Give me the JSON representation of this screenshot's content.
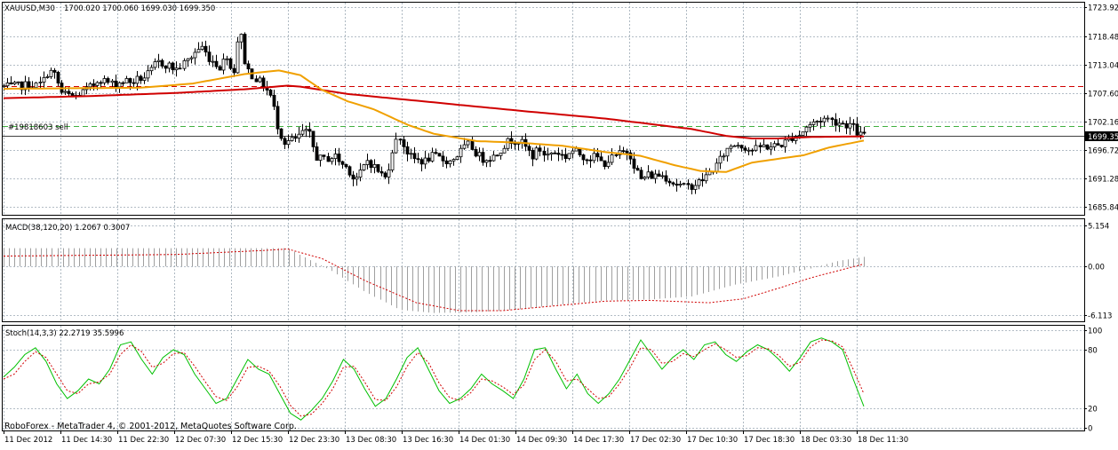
{
  "header": {
    "symbol": "XAUUSD,M30",
    "ohlc": "1700.020 1700.060 1699.030 1699.350"
  },
  "order_line": {
    "label": "#19818603 sell",
    "price": 1701.3
  },
  "resistance_line": {
    "price": 1708.9
  },
  "current_price": {
    "label": "1699.35",
    "price": 1699.35
  },
  "macd": {
    "label": "MACD(38,120,20) 1.2067 0.3007"
  },
  "stoch": {
    "label": "Stoch(14,3,3) 22.2719 35.5996"
  },
  "watermark": "RoboForex - MetaTrader 4, © 2001-2012, MetaQuotes Software Corp.",
  "colors": {
    "candles": "#000000",
    "ma_slow": "#d00000",
    "ma_fast": "#f0a000",
    "macd_hist": "#a0a0a0",
    "macd_signal": "#d00000",
    "stoch_main": "#00c000",
    "stoch_signal": "#d00000",
    "grid": "#9aa8b4",
    "current_line": "#000000",
    "sell_line": "#40b040",
    "resistance": "#d00000"
  },
  "chart_data": [
    {
      "type": "candlestick",
      "title": "XAUUSD,M30",
      "ylim": [
        1685.0,
        1724.0
      ],
      "y_ticks": [
        "1723.92",
        "1718.48",
        "1713.04",
        "1707.60",
        "1702.16",
        "1696.72",
        "1691.28",
        "1685.84"
      ],
      "x_ticks": [
        "11 Dec 2012",
        "11 Dec 14:30",
        "11 Dec 22:30",
        "12 Dec 07:30",
        "12 Dec 15:30",
        "12 Dec 23:30",
        "13 Dec 08:30",
        "13 Dec 16:30",
        "14 Dec 01:30",
        "14 Dec 09:30",
        "14 Dec 17:30",
        "17 Dec 02:30",
        "17 Dec 10:30",
        "17 Dec 18:30",
        "18 Dec 03:30",
        "18 Dec 11:30"
      ],
      "close_path": [
        1708.8,
        1708.7,
        1708.9,
        1709.0,
        1709.2,
        1709.0,
        1709.5,
        1712.0,
        1711.0,
        1707.6,
        1707.2,
        1706.8,
        1707.5,
        1708.2,
        1709.0,
        1710.5,
        1709.8,
        1709.3,
        1709.6,
        1710.0,
        1709.6,
        1710.2,
        1710.6,
        1711.5,
        1713.5,
        1713.2,
        1712.8,
        1712.0,
        1713.0,
        1714.0,
        1715.5,
        1716.5,
        1714.5,
        1713.5,
        1712.5,
        1715.0,
        1710.5,
        1720.5,
        1712.5,
        1711.0,
        1709.8,
        1708.6,
        1706.6,
        1701.0,
        1698.2,
        1698.5,
        1698.8,
        1700.3,
        1699.6,
        1695.5,
        1694.8,
        1695.2,
        1695.5,
        1694.0,
        1693.2,
        1691.0,
        1692.3,
        1694.8,
        1693.7,
        1692.4,
        1691.2,
        1696.8,
        1699.5,
        1696.8,
        1695.0,
        1694.8,
        1694.5,
        1695.5,
        1695.3,
        1694.8,
        1694.5,
        1695.5,
        1696.8,
        1697.8,
        1696.2,
        1695.0,
        1695.3,
        1695.5,
        1697.0,
        1698.2,
        1698.8,
        1698.4,
        1697.1,
        1695.5,
        1697.0,
        1695.5,
        1696.3,
        1696.2,
        1695.3,
        1696.6,
        1696.2,
        1695.5,
        1695.2,
        1695.5,
        1694.0,
        1694.8,
        1695.5,
        1696.2,
        1696.6,
        1693.5,
        1691.0,
        1692.0,
        1691.7,
        1692.0,
        1691.5,
        1690.5,
        1690.0,
        1689.5,
        1690.0,
        1690.5,
        1691.5,
        1692.8,
        1694.0,
        1696.0,
        1697.5,
        1698.0,
        1697.5,
        1696.8,
        1696.8,
        1697.5,
        1697.3,
        1697.5,
        1697.8,
        1698.5,
        1699.5,
        1699.7,
        1701.2,
        1701.8,
        1702.4,
        1702.8,
        1702.3,
        1702.0,
        1701.6,
        1701.5,
        1699.8,
        1699.35
      ],
      "ma_fast": [
        {
          "t": 0,
          "v": 1708.4
        },
        {
          "t": 0.08,
          "v": 1708.5
        },
        {
          "t": 0.16,
          "v": 1708.6
        },
        {
          "t": 0.22,
          "v": 1709.4
        },
        {
          "t": 0.28,
          "v": 1711.2
        },
        {
          "t": 0.32,
          "v": 1711.9
        },
        {
          "t": 0.345,
          "v": 1711.0
        },
        {
          "t": 0.37,
          "v": 1708.2
        },
        {
          "t": 0.4,
          "v": 1706.0
        },
        {
          "t": 0.43,
          "v": 1704.5
        },
        {
          "t": 0.47,
          "v": 1701.5
        },
        {
          "t": 0.5,
          "v": 1699.8
        },
        {
          "t": 0.55,
          "v": 1698.4
        },
        {
          "t": 0.6,
          "v": 1698.1
        },
        {
          "t": 0.65,
          "v": 1697.5
        },
        {
          "t": 0.7,
          "v": 1696.3
        },
        {
          "t": 0.74,
          "v": 1695.6
        },
        {
          "t": 0.78,
          "v": 1693.8
        },
        {
          "t": 0.81,
          "v": 1692.7
        },
        {
          "t": 0.84,
          "v": 1692.5
        },
        {
          "t": 0.87,
          "v": 1694.3
        },
        {
          "t": 0.9,
          "v": 1695.0
        },
        {
          "t": 0.93,
          "v": 1695.7
        },
        {
          "t": 0.96,
          "v": 1697.2
        },
        {
          "t": 1.0,
          "v": 1698.5
        }
      ],
      "ma_slow": [
        {
          "t": 0,
          "v": 1706.6
        },
        {
          "t": 0.1,
          "v": 1707.0
        },
        {
          "t": 0.2,
          "v": 1707.6
        },
        {
          "t": 0.28,
          "v": 1708.3
        },
        {
          "t": 0.33,
          "v": 1709.0
        },
        {
          "t": 0.345,
          "v": 1708.8
        },
        {
          "t": 0.4,
          "v": 1707.4
        },
        {
          "t": 0.5,
          "v": 1705.8
        },
        {
          "t": 0.6,
          "v": 1704.2
        },
        {
          "t": 0.7,
          "v": 1702.7
        },
        {
          "t": 0.8,
          "v": 1700.7
        },
        {
          "t": 0.84,
          "v": 1699.4
        },
        {
          "t": 0.87,
          "v": 1698.9
        },
        {
          "t": 0.9,
          "v": 1698.9
        },
        {
          "t": 0.94,
          "v": 1699.2
        },
        {
          "t": 1.0,
          "v": 1699.3
        }
      ]
    },
    {
      "type": "bar",
      "title": "MACD(38,120,20) 1.2067 0.3007",
      "ylim": [
        -6.5,
        5.4
      ],
      "y_ticks": [
        "5.154",
        "0.00",
        "-6.113"
      ],
      "histogram": [
        {
          "t": 0,
          "v": 2.3
        },
        {
          "t": 0.3,
          "v": 2.3
        },
        {
          "t": 0.33,
          "v": 2.3
        },
        {
          "t": 0.345,
          "v": 1.4
        },
        {
          "t": 0.38,
          "v": -0.5
        },
        {
          "t": 0.42,
          "v": -3.2
        },
        {
          "t": 0.46,
          "v": -5.5
        },
        {
          "t": 0.5,
          "v": -5.9
        },
        {
          "t": 0.55,
          "v": -5.8
        },
        {
          "t": 0.6,
          "v": -5.4
        },
        {
          "t": 0.65,
          "v": -4.8
        },
        {
          "t": 0.7,
          "v": -4.3
        },
        {
          "t": 0.75,
          "v": -4.2
        },
        {
          "t": 0.8,
          "v": -3.8
        },
        {
          "t": 0.85,
          "v": -2.3
        },
        {
          "t": 0.9,
          "v": -1.3
        },
        {
          "t": 0.94,
          "v": -0.2
        },
        {
          "t": 0.97,
          "v": 0.7
        },
        {
          "t": 1.0,
          "v": 1.2
        }
      ],
      "signal": [
        {
          "t": 0,
          "v": 1.3
        },
        {
          "t": 0.1,
          "v": 1.4
        },
        {
          "t": 0.2,
          "v": 1.5
        },
        {
          "t": 0.3,
          "v": 2.0
        },
        {
          "t": 0.33,
          "v": 2.2
        },
        {
          "t": 0.37,
          "v": 1.0
        },
        {
          "t": 0.42,
          "v": -1.8
        },
        {
          "t": 0.48,
          "v": -4.6
        },
        {
          "t": 0.53,
          "v": -5.6
        },
        {
          "t": 0.58,
          "v": -5.6
        },
        {
          "t": 0.65,
          "v": -4.9
        },
        {
          "t": 0.7,
          "v": -4.4
        },
        {
          "t": 0.75,
          "v": -4.3
        },
        {
          "t": 0.82,
          "v": -4.6
        },
        {
          "t": 0.86,
          "v": -4.1
        },
        {
          "t": 0.9,
          "v": -2.8
        },
        {
          "t": 0.94,
          "v": -1.4
        },
        {
          "t": 1.0,
          "v": 0.3
        }
      ]
    },
    {
      "type": "line",
      "title": "Stoch(14,3,3) 22.2719 35.5996",
      "ylim": [
        0,
        100
      ],
      "y_ticks": [
        "100",
        "80",
        "20",
        "0"
      ],
      "main": [
        52,
        62,
        75,
        82,
        68,
        45,
        30,
        38,
        50,
        45,
        60,
        85,
        88,
        70,
        55,
        72,
        80,
        75,
        55,
        40,
        25,
        30,
        50,
        70,
        60,
        55,
        35,
        15,
        8,
        18,
        30,
        48,
        70,
        60,
        40,
        22,
        30,
        50,
        72,
        82,
        60,
        38,
        25,
        30,
        40,
        55,
        45,
        38,
        30,
        50,
        80,
        82,
        60,
        40,
        55,
        35,
        25,
        35,
        50,
        70,
        90,
        75,
        60,
        72,
        80,
        70,
        85,
        88,
        75,
        68,
        78,
        85,
        80,
        70,
        58,
        72,
        88,
        92,
        88,
        80,
        50,
        22
      ],
      "signal": [
        50,
        55,
        68,
        78,
        72,
        55,
        38,
        35,
        45,
        47,
        55,
        75,
        85,
        78,
        62,
        66,
        76,
        77,
        63,
        47,
        32,
        28,
        42,
        62,
        63,
        58,
        43,
        23,
        12,
        14,
        25,
        40,
        62,
        63,
        47,
        29,
        28,
        42,
        63,
        77,
        67,
        46,
        31,
        28,
        36,
        50,
        48,
        42,
        34,
        44,
        70,
        80,
        68,
        48,
        50,
        40,
        30,
        32,
        45,
        62,
        82,
        80,
        66,
        68,
        76,
        73,
        80,
        86,
        80,
        72,
        74,
        82,
        81,
        74,
        63,
        67,
        83,
        90,
        89,
        83,
        60,
        35
      ]
    }
  ]
}
